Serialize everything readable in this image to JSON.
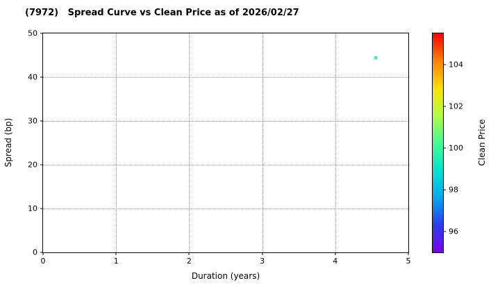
{
  "chart_data": {
    "type": "scatter",
    "title": "(7972)   Spread Curve vs Clean Price as of 2026/02/27",
    "xlabel": "Duration (years)",
    "ylabel": "Spread (bp)",
    "xlim": [
      0,
      5
    ],
    "ylim": [
      0,
      50
    ],
    "xticks": [
      0,
      1,
      2,
      3,
      4,
      5
    ],
    "yticks": [
      0,
      10,
      20,
      30,
      40,
      50
    ],
    "grid": true,
    "grid_style": "dotted",
    "legend_position": "none",
    "points": [
      {
        "x": 4.55,
        "y": 44.5,
        "color": "#3fe8cf"
      }
    ],
    "colorbar": {
      "label": "Clean Price",
      "min": 95,
      "max": 105.5,
      "ticks": [
        96,
        98,
        100,
        102,
        104
      ],
      "gradient_bottom_to_top": [
        "#7d00f0",
        "#2a3cf0",
        "#00aaf0",
        "#00e5d0",
        "#40ff90",
        "#b0ff40",
        "#ffe000",
        "#ff8000",
        "#ff0000"
      ]
    }
  },
  "colors": {
    "background": "#ffffff",
    "axis": "#000000",
    "grid": "#999999"
  }
}
